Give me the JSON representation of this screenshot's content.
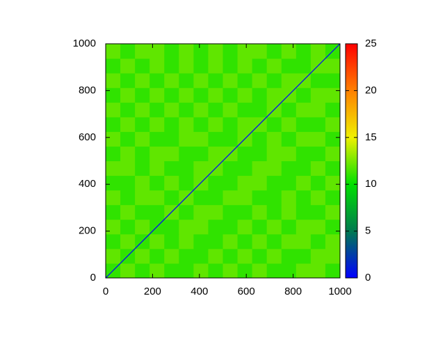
{
  "chart_data": {
    "type": "heatmap",
    "xlim": [
      0,
      1000
    ],
    "ylim": [
      0,
      1000
    ],
    "xticks": [
      0,
      200,
      400,
      600,
      800,
      1000
    ],
    "yticks": [
      0,
      200,
      400,
      600,
      800,
      1000
    ],
    "clim": [
      0,
      25
    ],
    "cticks": [
      0,
      5,
      10,
      15,
      20,
      25
    ],
    "colormap": [
      "#0000ff",
      "#007a50",
      "#00e000",
      "#f0f000",
      "#ff8000",
      "#ff0000"
    ],
    "diagonal_value": 0,
    "values": [
      [
        11,
        12,
        11,
        12,
        11,
        11,
        12,
        11,
        12,
        11,
        12,
        11,
        11,
        12,
        12,
        11
      ],
      [
        12,
        11,
        12,
        11,
        12,
        11,
        11,
        12,
        11,
        12,
        11,
        12,
        11,
        11,
        12,
        12
      ],
      [
        11,
        12,
        11,
        12,
        11,
        12,
        11,
        11,
        12,
        11,
        12,
        11,
        12,
        12,
        11,
        12
      ],
      [
        12,
        11,
        12,
        11,
        11,
        12,
        12,
        11,
        11,
        12,
        11,
        12,
        11,
        12,
        12,
        11
      ],
      [
        11,
        12,
        11,
        11,
        12,
        11,
        12,
        12,
        11,
        11,
        12,
        11,
        12,
        11,
        11,
        12
      ],
      [
        12,
        11,
        12,
        12,
        11,
        12,
        11,
        11,
        12,
        12,
        11,
        11,
        12,
        11,
        12,
        11
      ],
      [
        11,
        11,
        12,
        11,
        12,
        11,
        12,
        11,
        11,
        12,
        12,
        11,
        11,
        12,
        11,
        12
      ],
      [
        12,
        12,
        11,
        12,
        11,
        11,
        12,
        12,
        11,
        11,
        12,
        12,
        11,
        11,
        12,
        11
      ],
      [
        11,
        12,
        11,
        12,
        12,
        11,
        11,
        12,
        12,
        11,
        11,
        12,
        12,
        11,
        11,
        12
      ],
      [
        12,
        11,
        12,
        11,
        11,
        12,
        12,
        11,
        11,
        12,
        11,
        12,
        11,
        12,
        12,
        11
      ],
      [
        11,
        12,
        11,
        12,
        11,
        12,
        11,
        12,
        11,
        12,
        12,
        11,
        12,
        11,
        11,
        12
      ],
      [
        12,
        11,
        12,
        11,
        12,
        11,
        12,
        11,
        12,
        11,
        11,
        12,
        11,
        12,
        12,
        11
      ],
      [
        11,
        12,
        11,
        12,
        11,
        12,
        11,
        12,
        11,
        12,
        11,
        12,
        12,
        11,
        12,
        12
      ],
      [
        12,
        11,
        12,
        11,
        12,
        11,
        12,
        11,
        12,
        11,
        12,
        11,
        12,
        12,
        11,
        11
      ],
      [
        11,
        12,
        11,
        12,
        11,
        12,
        11,
        12,
        11,
        12,
        11,
        12,
        11,
        11,
        12,
        12
      ],
      [
        12,
        11,
        12,
        12,
        11,
        12,
        11,
        12,
        11,
        12,
        12,
        11,
        12,
        11,
        12,
        11
      ]
    ]
  }
}
